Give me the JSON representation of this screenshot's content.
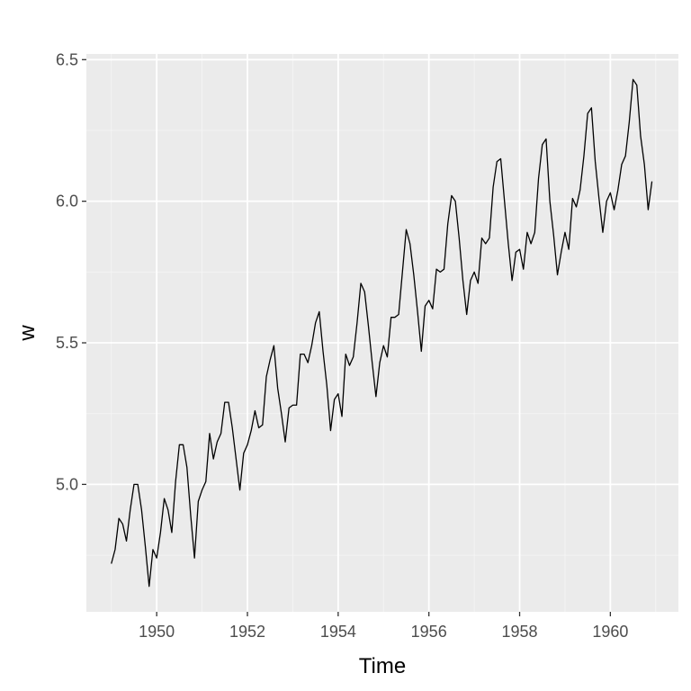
{
  "chart_data": {
    "type": "line",
    "xlabel": "Time",
    "ylabel": "w",
    "xlim": [
      1948.45,
      1961.5
    ],
    "ylim": [
      4.55,
      6.52
    ],
    "x_ticks": [
      1950,
      1952,
      1954,
      1956,
      1958,
      1960
    ],
    "x_tick_labels": [
      "1950",
      "1952",
      "1954",
      "1956",
      "1958",
      "1960"
    ],
    "y_ticks": [
      5.0,
      5.5,
      6.0,
      6.5
    ],
    "y_tick_labels": [
      "5.0",
      "5.5",
      "6.0",
      "6.5"
    ],
    "grid": true,
    "colors": {
      "panel": "#ebebeb",
      "grid_major": "#ffffff",
      "grid_minor": "#f5f5f5",
      "line": "#000000",
      "tick": "#333333"
    },
    "series": [
      {
        "x_start": 1949.0,
        "x_step": 0.0833333,
        "values": [
          4.72,
          4.77,
          4.88,
          4.86,
          4.8,
          4.91,
          5.0,
          5.0,
          4.91,
          4.78,
          4.64,
          4.77,
          4.74,
          4.83,
          4.95,
          4.91,
          4.83,
          5.01,
          5.14,
          5.14,
          5.06,
          4.89,
          4.74,
          4.94,
          4.98,
          5.01,
          5.18,
          5.09,
          5.15,
          5.18,
          5.29,
          5.29,
          5.2,
          5.09,
          4.98,
          5.11,
          5.14,
          5.19,
          5.26,
          5.2,
          5.21,
          5.38,
          5.44,
          5.49,
          5.34,
          5.25,
          5.15,
          5.27,
          5.28,
          5.28,
          5.46,
          5.46,
          5.43,
          5.49,
          5.57,
          5.61,
          5.47,
          5.35,
          5.19,
          5.3,
          5.32,
          5.24,
          5.46,
          5.42,
          5.45,
          5.57,
          5.71,
          5.68,
          5.56,
          5.43,
          5.31,
          5.43,
          5.49,
          5.45,
          5.59,
          5.59,
          5.6,
          5.75,
          5.9,
          5.85,
          5.74,
          5.61,
          5.47,
          5.63,
          5.65,
          5.62,
          5.76,
          5.75,
          5.76,
          5.92,
          6.02,
          6.0,
          5.87,
          5.72,
          5.6,
          5.72,
          5.75,
          5.71,
          5.87,
          5.85,
          5.87,
          6.05,
          6.14,
          6.15,
          6.0,
          5.85,
          5.72,
          5.82,
          5.83,
          5.76,
          5.89,
          5.85,
          5.89,
          6.08,
          6.2,
          6.22,
          6.0,
          5.88,
          5.74,
          5.82,
          5.89,
          5.83,
          6.01,
          5.98,
          6.04,
          6.16,
          6.31,
          6.33,
          6.14,
          6.01,
          5.89,
          6.0,
          6.03,
          5.97,
          6.04,
          6.13,
          6.16,
          6.28,
          6.43,
          6.41,
          6.23,
          6.13,
          5.97,
          6.07
        ]
      }
    ]
  }
}
